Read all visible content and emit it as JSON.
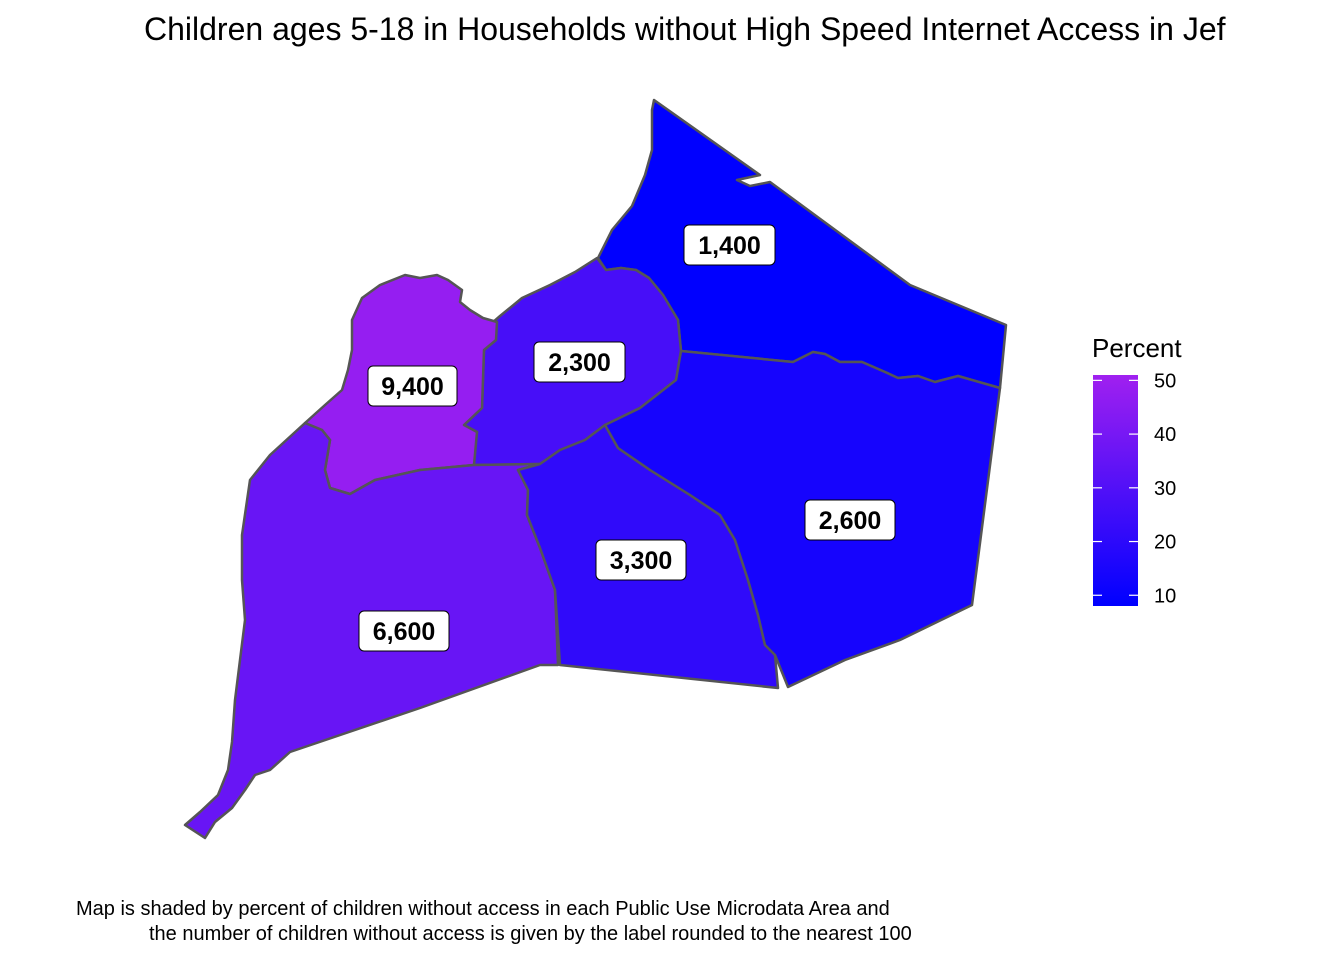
{
  "title": "Children ages 5-18 in Households without High Speed Internet Access in Jef",
  "caption": {
    "line1": "Map is shaded by percent of children without access in each Public Use Microdata Area and",
    "line2": "the number of children without access is given by the label rounded to the nearest 100"
  },
  "legend": {
    "title": "Percent",
    "ticks": [
      "50",
      "40",
      "30",
      "20",
      "10"
    ],
    "tick_values": [
      50,
      40,
      30,
      20,
      10
    ],
    "range": [
      8,
      51
    ],
    "color_low": "#0000FF",
    "color_high": "#A020F0",
    "placement": "right"
  },
  "regions": [
    {
      "id": "northeast",
      "label": "1,400",
      "percent": 8
    },
    {
      "id": "north-central",
      "label": "2,300",
      "percent": 27
    },
    {
      "id": "northwest",
      "label": "9,400",
      "percent": 48
    },
    {
      "id": "southwest",
      "label": "6,600",
      "percent": 36
    },
    {
      "id": "south-central",
      "label": "3,300",
      "percent": 21
    },
    {
      "id": "east",
      "label": "2,600",
      "percent": 14
    }
  ]
}
